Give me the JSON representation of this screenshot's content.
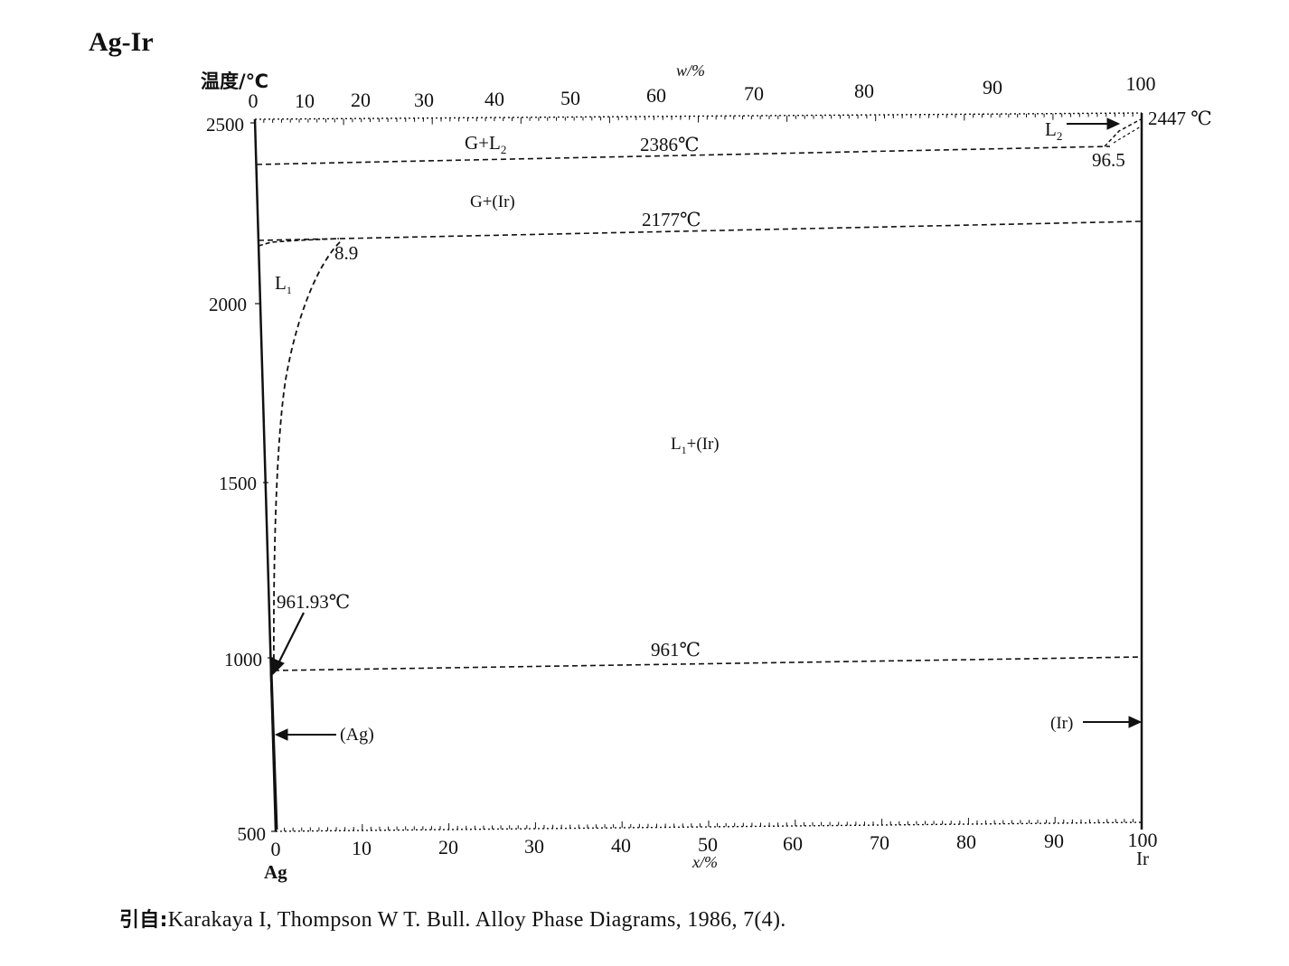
{
  "title": "Ag-Ir",
  "axes": {
    "y_label": "温度/℃",
    "top_label": "w/%",
    "bottom_label": "x/%",
    "left_element": "Ag",
    "right_element": "Ir",
    "y_ticks": [
      "2500",
      "2000",
      "1500",
      "1000",
      "500"
    ],
    "top_ticks": [
      "0",
      "10",
      "20",
      "30",
      "40",
      "50",
      "60",
      "70",
      "80",
      "90",
      "100"
    ],
    "bottom_ticks": [
      "0",
      "10",
      "20",
      "30",
      "40",
      "50",
      "60",
      "70",
      "80",
      "90",
      "100"
    ]
  },
  "labels": {
    "g_l2": "G+L",
    "g_l2_sub": "2",
    "temp_2386": "2386℃",
    "temp_2447": "2447 ℃",
    "l2": "L",
    "l2_sub": "2",
    "comp_96_5": "96.5",
    "g_ir": "G+(Ir)",
    "temp_2177": "2177℃",
    "comp_8_9": "8.9",
    "l1": "L",
    "l1_sub": "1",
    "l1_ir": "+(Ir)",
    "l1_ir_prefix": "L",
    "l1_ir_sub": "1",
    "temp_961_93": "961.93℃",
    "temp_961": "961℃",
    "ag_phase": "(Ag)",
    "ir_phase": "(Ir)"
  },
  "citation": {
    "prefix": "引自:",
    "text": "Karakaya I, Thompson W T. Bull. Alloy Phase Diagrams, 1986, 7(4)."
  },
  "chart_data": {
    "type": "phase_diagram",
    "x_unit": "x/% (at.% Ir)",
    "y_unit": "温度/℃",
    "xlim": [
      0,
      100
    ],
    "ylim": [
      500,
      2500
    ],
    "invariant_lines": [
      {
        "temperature": 2386,
        "label": "2386℃"
      },
      {
        "temperature": 2177,
        "label": "2177℃"
      },
      {
        "temperature": 961,
        "label": "961℃"
      }
    ],
    "special_points": [
      {
        "x": 100,
        "temperature": 2447,
        "label": "2447 ℃"
      },
      {
        "x": 0,
        "temperature": 961.93,
        "label": "961.93℃"
      },
      {
        "x": 8.9,
        "temperature": 2177,
        "label": "8.9"
      },
      {
        "x": 96.5,
        "temperature": 2386,
        "label": "96.5"
      }
    ],
    "phase_regions": [
      "G+L2",
      "G+(Ir)",
      "L1",
      "L1+(Ir)",
      "L2",
      "(Ag)",
      "(Ir)"
    ]
  }
}
